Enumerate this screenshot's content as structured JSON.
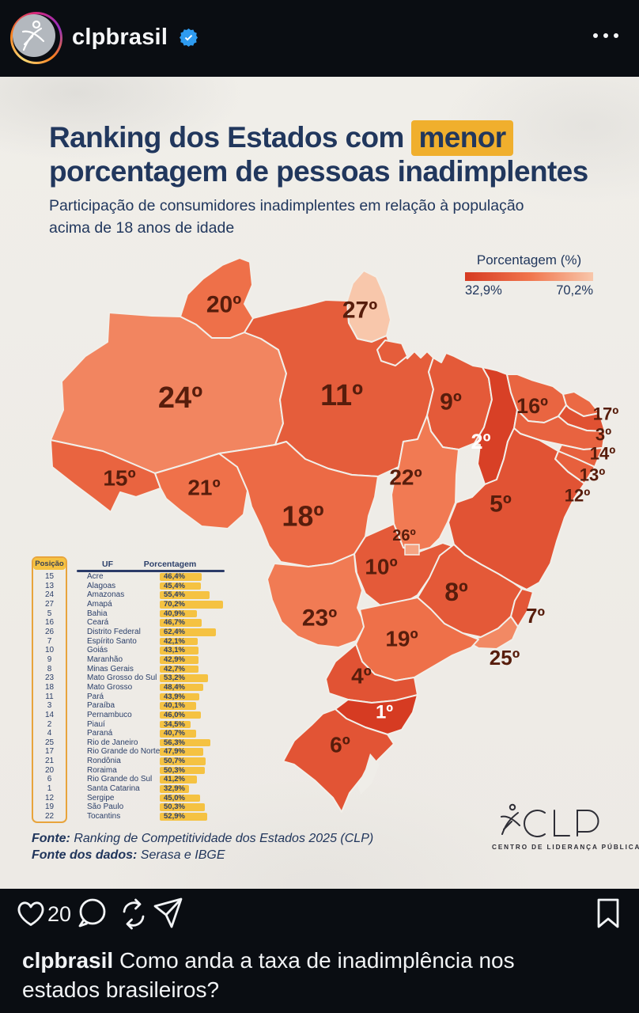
{
  "header": {
    "username": "clpbrasil",
    "verified": true
  },
  "post": {
    "title_pre": "Ranking dos Estados com ",
    "title_highlight": "menor",
    "title_line2": "porcentagem de pessoas inadimplentes",
    "subtitle": "Participação de consumidores inadimplentes em relação à população acima de 18 anos de idade",
    "legend": {
      "title": "Porcentagem (%)",
      "min": "32,9%",
      "max": "70,2%"
    },
    "colors": {
      "scale_dark": "#D63B22",
      "scale_mid": "#F0744C",
      "scale_light": "#F8C7AB",
      "bar_yellow": "#F5C242",
      "navy": "#21375D",
      "label_dark": "#571D0C",
      "highlight": "#F0AF2D"
    },
    "table": {
      "headers": [
        "Posição",
        "UF",
        "Porcentagem"
      ],
      "rows": [
        {
          "pos": 15,
          "uf": "Acre",
          "pct": 46.4,
          "pct_label": "46,4%",
          "code": "AC"
        },
        {
          "pos": 13,
          "uf": "Alagoas",
          "pct": 45.4,
          "pct_label": "45,4%",
          "code": "AL"
        },
        {
          "pos": 24,
          "uf": "Amazonas",
          "pct": 55.4,
          "pct_label": "55,4%",
          "code": "AM"
        },
        {
          "pos": 27,
          "uf": "Amapá",
          "pct": 70.2,
          "pct_label": "70,2%",
          "code": "AP"
        },
        {
          "pos": 5,
          "uf": "Bahia",
          "pct": 40.9,
          "pct_label": "40,9%",
          "code": "BA"
        },
        {
          "pos": 16,
          "uf": "Ceará",
          "pct": 46.7,
          "pct_label": "46,7%",
          "code": "CE"
        },
        {
          "pos": 26,
          "uf": "Distrito Federal",
          "pct": 62.4,
          "pct_label": "62,4%",
          "code": "DF"
        },
        {
          "pos": 7,
          "uf": "Espírito Santo",
          "pct": 42.1,
          "pct_label": "42,1%",
          "code": "ES"
        },
        {
          "pos": 10,
          "uf": "Goiás",
          "pct": 43.1,
          "pct_label": "43,1%",
          "code": "GO"
        },
        {
          "pos": 9,
          "uf": "Maranhão",
          "pct": 42.9,
          "pct_label": "42,9%",
          "code": "MA"
        },
        {
          "pos": 8,
          "uf": "Minas Gerais",
          "pct": 42.7,
          "pct_label": "42,7%",
          "code": "MG"
        },
        {
          "pos": 23,
          "uf": "Mato Grosso do Sul",
          "pct": 53.2,
          "pct_label": "53,2%",
          "code": "MS"
        },
        {
          "pos": 18,
          "uf": "Mato Grosso",
          "pct": 48.4,
          "pct_label": "48,4%",
          "code": "MT"
        },
        {
          "pos": 11,
          "uf": "Pará",
          "pct": 43.9,
          "pct_label": "43,9%",
          "code": "PA"
        },
        {
          "pos": 3,
          "uf": "Paraíba",
          "pct": 40.1,
          "pct_label": "40,1%",
          "code": "PB"
        },
        {
          "pos": 14,
          "uf": "Pernambuco",
          "pct": 46.0,
          "pct_label": "46,0%",
          "code": "PE"
        },
        {
          "pos": 2,
          "uf": "Piauí",
          "pct": 34.5,
          "pct_label": "34,5%",
          "code": "PI"
        },
        {
          "pos": 4,
          "uf": "Paraná",
          "pct": 40.7,
          "pct_label": "40,7%",
          "code": "PR"
        },
        {
          "pos": 25,
          "uf": "Rio de Janeiro",
          "pct": 56.3,
          "pct_label": "56,3%",
          "code": "RJ"
        },
        {
          "pos": 17,
          "uf": "Rio Grande do Norte",
          "pct": 47.9,
          "pct_label": "47,9%",
          "code": "RN"
        },
        {
          "pos": 21,
          "uf": "Rondônia",
          "pct": 50.7,
          "pct_label": "50,7%",
          "code": "RO"
        },
        {
          "pos": 20,
          "uf": "Roraima",
          "pct": 50.3,
          "pct_label": "50,3%",
          "code": "RR"
        },
        {
          "pos": 6,
          "uf": "Rio Grande do Sul",
          "pct": 41.2,
          "pct_label": "41,2%",
          "code": "RS"
        },
        {
          "pos": 1,
          "uf": "Santa Catarina",
          "pct": 32.9,
          "pct_label": "32,9%",
          "code": "SC"
        },
        {
          "pos": 12,
          "uf": "Sergipe",
          "pct": 45.0,
          "pct_label": "45,0%",
          "code": "SE"
        },
        {
          "pos": 19,
          "uf": "São Paulo",
          "pct": 50.3,
          "pct_label": "50,3%",
          "code": "SP"
        },
        {
          "pos": 22,
          "uf": "Tocantins",
          "pct": 52.9,
          "pct_label": "52,9%",
          "code": "TO"
        }
      ]
    },
    "footer": {
      "line1_label": "Fonte:",
      "line1": " Ranking de Competitividade dos Estados 2025 (CLP)",
      "line2_label": "Fonte dos dados:",
      "line2": " Serasa e IBGE"
    },
    "logo": {
      "text": "CLP",
      "tagline": "CENTRO DE LIDERANÇA PÚBLICA"
    }
  },
  "actions": {
    "likes": "20"
  },
  "caption": {
    "username": "clpbrasil",
    "text": " Como anda a taxa de inadimplência nos estados brasileiros?"
  },
  "chart_data": {
    "type": "heatmap",
    "title": "Ranking dos Estados com menor porcentagem de pessoas inadimplentes",
    "subtitle": "Participação de consumidores inadimplentes em relação à população acima de 18 anos de idade",
    "legend": {
      "label": "Porcentagem (%)",
      "range": [
        32.9,
        70.2
      ]
    },
    "categories": [
      "Acre",
      "Alagoas",
      "Amazonas",
      "Amapá",
      "Bahia",
      "Ceará",
      "Distrito Federal",
      "Espírito Santo",
      "Goiás",
      "Maranhão",
      "Minas Gerais",
      "Mato Grosso do Sul",
      "Mato Grosso",
      "Pará",
      "Paraíba",
      "Pernambuco",
      "Piauí",
      "Paraná",
      "Rio de Janeiro",
      "Rio Grande do Norte",
      "Rondônia",
      "Roraima",
      "Rio Grande do Sul",
      "Santa Catarina",
      "Sergipe",
      "São Paulo",
      "Tocantins"
    ],
    "series": [
      {
        "name": "Posição",
        "values": [
          15,
          13,
          24,
          27,
          5,
          16,
          26,
          7,
          10,
          9,
          8,
          23,
          18,
          11,
          3,
          14,
          2,
          4,
          25,
          17,
          21,
          20,
          6,
          1,
          12,
          19,
          22
        ]
      },
      {
        "name": "Porcentagem",
        "values": [
          46.4,
          45.4,
          55.4,
          70.2,
          40.9,
          46.7,
          62.4,
          42.1,
          43.1,
          42.9,
          42.7,
          53.2,
          48.4,
          43.9,
          40.1,
          46.0,
          34.5,
          40.7,
          56.3,
          47.9,
          50.7,
          50.3,
          41.2,
          32.9,
          45.0,
          50.3,
          52.9
        ]
      }
    ]
  }
}
